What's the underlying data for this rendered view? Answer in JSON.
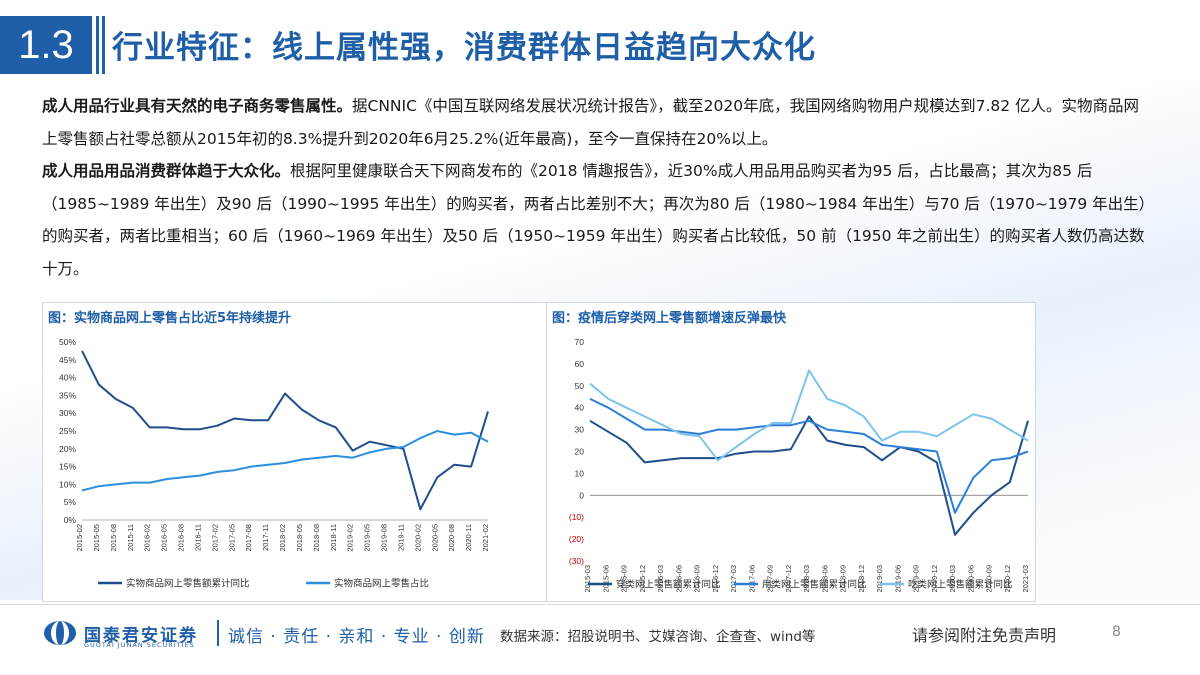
{
  "header": {
    "section_number": "1.3",
    "title": "行业特征：线上属性强，消费群体日益趋向大众化"
  },
  "body": {
    "p1_bold": "成人用品行业具有天然的电子商务零售属性。",
    "p1_text": "据CNNIC《中国互联网络发展状况统计报告》，截至2020年底，我国网络购物用户规模达到7.82 亿人。实物商品网上零售额占社零总额从2015年初的8.3%提升到2020年6月25.2%(近年最高)，至今一直保持在20%以上。",
    "p2_bold": "成人用品用品消费群体趋于大众化。",
    "p2_text": "根据阿里健康联合天下网商发布的《2018 情趣报告》，近30%成人用品用品购买者为95 后，占比最高；其次为85 后（1985~1989 年出生）及90 后（1990~1995 年出生）的购买者，两者占比差别不大；再次为80 后（1980~1984 年出生）与70 后（1970~1979 年出生）的购买者，两者比重相当；60 后（1960~1969 年出生）及50 后（1950~1959 年出生）购买者占比较低，50 前（1950 年之前出生）的购买者人数仍高达数十万。"
  },
  "chart_data": [
    {
      "type": "line",
      "title": "图：实物商品网上零售占比近5年持续提升",
      "x": [
        "2015-02",
        "2015-05",
        "2015-08",
        "2015-11",
        "2016-02",
        "2016-05",
        "2016-08",
        "2016-11",
        "2017-02",
        "2017-05",
        "2017-08",
        "2017-11",
        "2018-02",
        "2018-05",
        "2018-08",
        "2018-11",
        "2019-02",
        "2019-05",
        "2019-08",
        "2019-11",
        "2020-02",
        "2020-05",
        "2020-08",
        "2020-11",
        "2021-02"
      ],
      "ylim": [
        0,
        50
      ],
      "yticks": [
        "0%",
        "5%",
        "10%",
        "15%",
        "20%",
        "25%",
        "30%",
        "35%",
        "40%",
        "45%",
        "50%"
      ],
      "series": [
        {
          "name": "实物商品网上零售额累计同比",
          "color": "#1f4e8c",
          "values": [
            47.5,
            38,
            34,
            31.5,
            26,
            26,
            25.5,
            25.5,
            26.5,
            28.5,
            28,
            28,
            35.5,
            31,
            28,
            26,
            19.5,
            22,
            21,
            20,
            3,
            12,
            15.5,
            15,
            30.5
          ]
        },
        {
          "name": "实物商品网上零售占比",
          "color": "#2b8fe0",
          "values": [
            8.3,
            9.5,
            10,
            10.5,
            10.5,
            11.5,
            12,
            12.5,
            13.5,
            14,
            15,
            15.5,
            16,
            17,
            17.5,
            18,
            17.5,
            19,
            20,
            20.5,
            23,
            25,
            24,
            24.5,
            22
          ]
        }
      ],
      "legend": "bottom"
    },
    {
      "type": "line",
      "title": "图：疫情后穿类网上零售额增速反弹最快",
      "x": [
        "2015-03",
        "2015-06",
        "2015-09",
        "2015-12",
        "2016-03",
        "2016-06",
        "2016-09",
        "2016-12",
        "2017-03",
        "2017-06",
        "2017-09",
        "2017-12",
        "2018-03",
        "2018-06",
        "2018-09",
        "2018-12",
        "2019-03",
        "2019-06",
        "2019-09",
        "2019-12",
        "2020-03",
        "2020-06",
        "2020-09",
        "2020-12",
        "2021-03"
      ],
      "ylim": [
        -30,
        70
      ],
      "yticks": [
        "(30)",
        "(20)",
        "(10)",
        "0",
        "10",
        "20",
        "30",
        "40",
        "50",
        "60",
        "70"
      ],
      "series": [
        {
          "name": "穿类网上零售额累计同比",
          "color": "#1f4e8c",
          "values": [
            34,
            29,
            24,
            15,
            16,
            17,
            17,
            17,
            19,
            20,
            20,
            21,
            36,
            25,
            23,
            22,
            16,
            22,
            20,
            15,
            -18,
            -8,
            0,
            6,
            34
          ]
        },
        {
          "name": "用类网上零售额累计同比",
          "color": "#2b7fd8",
          "values": [
            44,
            40,
            35,
            30,
            30,
            29,
            28,
            30,
            30,
            31,
            32,
            32,
            34,
            30,
            29,
            28,
            23,
            22,
            21,
            20,
            -8,
            8,
            16,
            17,
            20
          ]
        },
        {
          "name": "吃类网上零售额累计同比",
          "color": "#7cc4ee",
          "values": [
            51,
            44,
            40,
            36,
            32,
            28,
            27,
            16,
            22,
            28,
            33,
            33,
            57,
            44,
            41,
            36,
            25,
            29,
            29,
            27,
            32,
            37,
            35,
            30,
            25
          ]
        }
      ],
      "legend": "bottom"
    }
  ],
  "footer": {
    "logo_name": "国泰君安证券",
    "logo_sub": "GUOTAI JUNAN SECURITIES",
    "slogan": "诚信 · 责任 · 亲和 · 专业 · 创新",
    "source": "数据来源：招股说明书、艾媒咨询、企查查、wind等",
    "disclaimer": "请参阅附注免责声明",
    "page_number": "8"
  }
}
